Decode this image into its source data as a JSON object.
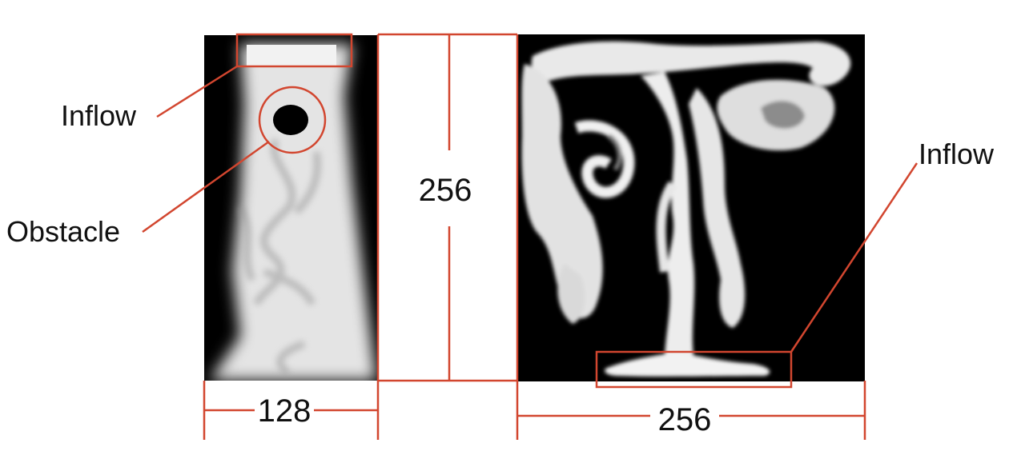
{
  "labels": {
    "left_inflow": "Inflow",
    "obstacle": "Obstacle",
    "right_inflow": "Inflow"
  },
  "dimensions": {
    "left_width": "128",
    "height": "256",
    "right_width": "256"
  },
  "colors": {
    "annotation": "#d2462f",
    "smoke": "#e9e9e9",
    "background": "#000000",
    "text": "#111111"
  }
}
